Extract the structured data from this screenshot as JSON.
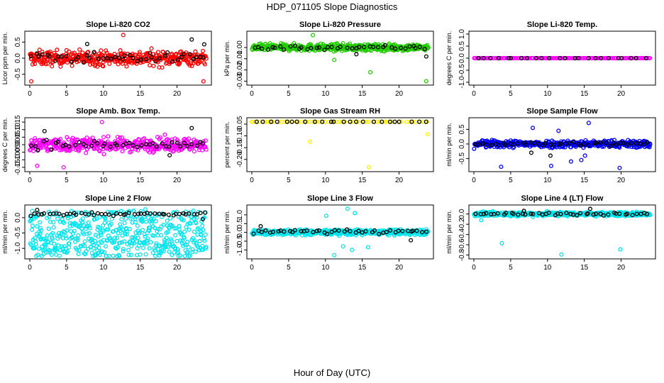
{
  "page": {
    "title": "HDP_071105  Slope Diagnostics",
    "xlabel": "Hour of Day (UTC)"
  },
  "colors": {
    "black": "#000000",
    "red": "#ff0000",
    "green": "#22cc00",
    "magenta": "#ff00ff",
    "yellow": "#ffee00",
    "blue": "#0000ff",
    "cyan": "#00e5ee"
  },
  "chart_data": [
    {
      "type": "scatter",
      "title": "Slope Li-820 CO2",
      "ylabel": "Licor ppm per min.",
      "xlim": [
        0,
        24
      ],
      "ylim": [
        -0.75,
        0.75
      ],
      "xticks": [
        0,
        5,
        10,
        15,
        20
      ],
      "yticks": [
        -0.5,
        0.0,
        0.5
      ],
      "ytick_labels": [
        "-0.5",
        "0.0",
        "0.5"
      ],
      "series": [
        {
          "color": "red",
          "pattern": "band",
          "n": 420,
          "center": 0.0,
          "spread": 0.45,
          "points": [
            [
              12.7,
              0.72
            ],
            [
              0.2,
              -0.72
            ],
            [
              23.6,
              -0.72
            ]
          ]
        },
        {
          "color": "black",
          "pattern": "band",
          "n": 45,
          "center": 0.02,
          "spread": 0.3,
          "points": [
            [
              22.0,
              0.58
            ],
            [
              23.7,
              0.43
            ],
            [
              7.8,
              0.44
            ]
          ]
        }
      ]
    },
    {
      "type": "scatter",
      "title": "Slope Li-820 Pressure",
      "ylabel": "kPa per min.",
      "xlim": [
        0,
        24
      ],
      "ylim": [
        -0.031,
        0.012
      ],
      "xticks": [
        0,
        5,
        10,
        15,
        20
      ],
      "yticks": [
        -0.03,
        -0.02,
        -0.01,
        0.0
      ],
      "ytick_labels": [
        "-0.03",
        "-0.02",
        "-0.01",
        "0.00"
      ],
      "series": [
        {
          "color": "green",
          "pattern": "band",
          "n": 480,
          "center": 0.0,
          "spread": 0.006,
          "points": [
            [
              8.3,
              0.011
            ],
            [
              16.1,
              -0.022
            ],
            [
              23.7,
              -0.03
            ],
            [
              11.2,
              -0.011
            ]
          ]
        },
        {
          "color": "black",
          "pattern": "band",
          "n": 40,
          "center": 0.0,
          "spread": 0.004,
          "points": [
            [
              14.2,
              -0.006
            ],
            [
              23.7,
              -0.008
            ]
          ]
        }
      ]
    },
    {
      "type": "scatter",
      "title": "Slope Li-820 Temp.",
      "ylabel": "degrees C per min.",
      "xlim": [
        0,
        24
      ],
      "ylim": [
        -1.0,
        1.0
      ],
      "xticks": [
        0,
        5,
        10,
        15,
        20
      ],
      "yticks": [
        -1.0,
        -0.5,
        0.0,
        0.5,
        1.0
      ],
      "ytick_labels": [
        "-1.0",
        "-0.5",
        "0.0",
        "0.5",
        "1.0"
      ],
      "series": [
        {
          "color": "magenta",
          "pattern": "flat",
          "n": 140,
          "center": 0.0,
          "spread": 0.0,
          "points": [
            [
              0.1,
              0.0
            ]
          ]
        },
        {
          "color": "black",
          "pattern": "flat",
          "n": 24,
          "center": 0.0,
          "spread": 0.0,
          "points": []
        }
      ]
    },
    {
      "type": "scatter",
      "title": "Slope Amb. Box Temp.",
      "ylabel": "degrees C per min.",
      "xlim": [
        0,
        24
      ],
      "ylim": [
        -0.16,
        0.16
      ],
      "xticks": [
        0,
        5,
        10,
        15,
        20
      ],
      "yticks": [
        -0.15,
        -0.1,
        -0.05,
        0.0,
        0.05,
        0.1,
        0.15
      ],
      "ytick_labels": [
        "-0.15",
        "-0.10",
        "-0.05",
        "0.00",
        "0.05",
        "0.10",
        "0.15"
      ],
      "series": [
        {
          "color": "magenta",
          "pattern": "band",
          "n": 420,
          "center": 0.0,
          "spread": 0.09,
          "points": [
            [
              9.8,
              0.15
            ],
            [
              4.6,
              -0.15
            ],
            [
              1.0,
              -0.14
            ]
          ]
        },
        {
          "color": "black",
          "pattern": "band",
          "n": 45,
          "center": 0.0,
          "spread": 0.06,
          "points": [
            [
              2.0,
              0.09
            ],
            [
              22.0,
              0.11
            ],
            [
              19.0,
              -0.07
            ]
          ]
        }
      ]
    },
    {
      "type": "scatter",
      "title": "Slope Gas Stream RH",
      "ylabel": "percent per min.",
      "xlim": [
        0,
        24
      ],
      "ylim": [
        -0.24,
        -0.035
      ],
      "xticks": [
        0,
        5,
        10,
        15,
        20
      ],
      "yticks": [
        -0.05,
        -0.1,
        -0.15,
        -0.2
      ],
      "ytick_labels": [
        "-0.05",
        "-0.10",
        "-0.15",
        "-0.20"
      ],
      "series": [
        {
          "color": "yellow",
          "pattern": "flat",
          "n": 50,
          "center": -0.04,
          "spread": 0.0,
          "points": [
            [
              7.9,
              -0.125
            ],
            [
              15.9,
              -0.233
            ],
            [
              23.9,
              -0.093
            ],
            [
              0.0,
              -0.04
            ]
          ]
        },
        {
          "color": "black",
          "pattern": "flat",
          "n": 24,
          "center": -0.04,
          "spread": 0.0,
          "points": []
        }
      ]
    },
    {
      "type": "scatter",
      "title": "Slope Sample Flow",
      "ylabel": "ml/min per min.",
      "xlim": [
        0,
        24
      ],
      "ylim": [
        -0.85,
        0.8
      ],
      "xticks": [
        0,
        5,
        10,
        15,
        20
      ],
      "yticks": [
        -0.5,
        0.0,
        0.5
      ],
      "ytick_labels": [
        "-0.5",
        "0.0",
        "0.5"
      ],
      "series": [
        {
          "color": "blue",
          "pattern": "band",
          "n": 420,
          "center": 0.0,
          "spread": 0.25,
          "points": [
            [
              15.6,
              0.72
            ],
            [
              8.0,
              0.55
            ],
            [
              11.5,
              0.45
            ],
            [
              10.5,
              -0.75
            ],
            [
              19.8,
              -0.82
            ],
            [
              3.7,
              -0.78
            ],
            [
              13.2,
              -0.6
            ],
            [
              14.6,
              -0.55
            ],
            [
              15.1,
              -0.4
            ]
          ]
        },
        {
          "color": "black",
          "pattern": "band",
          "n": 45,
          "center": 0.0,
          "spread": 0.15,
          "points": [
            [
              7.8,
              -0.3
            ],
            [
              10.4,
              -0.4
            ]
          ]
        }
      ]
    },
    {
      "type": "scatter",
      "title": "Slope Line 2 Flow",
      "ylabel": "ml/min per min.",
      "xlim": [
        0,
        24
      ],
      "ylim": [
        -1.25,
        0.32
      ],
      "xticks": [
        0,
        5,
        10,
        15,
        20
      ],
      "yticks": [
        -1.0,
        -0.5,
        0.0
      ],
      "ytick_labels": [
        "-1.0",
        "-0.5",
        "0.0"
      ],
      "series": [
        {
          "color": "cyan",
          "pattern": "spread-down",
          "n": 520,
          "center": -0.45,
          "spread": 0.75,
          "points": [
            [
              15.7,
              0.27
            ],
            [
              15.0,
              -1.2
            ],
            [
              2.6,
              -1.05
            ],
            [
              9.3,
              -1.15
            ]
          ]
        },
        {
          "color": "black",
          "pattern": "band",
          "n": 50,
          "center": 0.12,
          "spread": 0.12,
          "points": [
            [
              1.0,
              0.25
            ],
            [
              23.5,
              -0.05
            ]
          ]
        }
      ]
    },
    {
      "type": "scatter",
      "title": "Slope Line 3 Flow",
      "ylabel": "ml/min per min.",
      "xlim": [
        0,
        24
      ],
      "ylim": [
        -1.35,
        1.4
      ],
      "xticks": [
        0,
        5,
        10,
        15,
        20
      ],
      "yticks": [
        -1.0,
        -0.5,
        0.0,
        0.5,
        1.0
      ],
      "ytick_labels": [
        "-1.0",
        "-0.5",
        "0.0",
        "0.5",
        "1.0"
      ],
      "series": [
        {
          "color": "cyan",
          "pattern": "band",
          "n": 480,
          "center": 0.0,
          "spread": 0.3,
          "points": [
            [
              13.0,
              1.35
            ],
            [
              14.0,
              1.1
            ],
            [
              11.2,
              -1.3
            ],
            [
              13.6,
              -1.0
            ],
            [
              12.4,
              -0.8
            ],
            [
              10.1,
              0.95
            ],
            [
              15.8,
              -0.85
            ]
          ]
        },
        {
          "color": "black",
          "pattern": "band",
          "n": 45,
          "center": 0.05,
          "spread": 0.25,
          "points": [
            [
              21.6,
              -0.45
            ],
            [
              1.2,
              0.35
            ]
          ]
        }
      ]
    },
    {
      "type": "scatter",
      "title": "Slope Line 4 (LT) Flow",
      "ylabel": "ml/min per min.",
      "xlim": [
        0,
        24
      ],
      "ylim": [
        -0.82,
        0.12
      ],
      "xticks": [
        0,
        5,
        10,
        15,
        20
      ],
      "yticks": [
        -0.8,
        -0.6,
        -0.4,
        -0.2,
        0.0
      ],
      "ytick_labels": [
        "-0.8",
        "-0.6",
        "-0.4",
        "-0.2",
        "0.0"
      ],
      "series": [
        {
          "color": "cyan",
          "pattern": "band",
          "n": 480,
          "center": 0.0,
          "spread": 0.08,
          "points": [
            [
              3.8,
              -0.57
            ],
            [
              11.9,
              -0.79
            ],
            [
              19.9,
              -0.69
            ],
            [
              1.0,
              -0.12
            ]
          ]
        },
        {
          "color": "black",
          "pattern": "band",
          "n": 45,
          "center": 0.0,
          "spread": 0.07,
          "points": [
            [
              15.8,
              0.1
            ],
            [
              6.8,
              0.06
            ]
          ]
        }
      ]
    }
  ]
}
